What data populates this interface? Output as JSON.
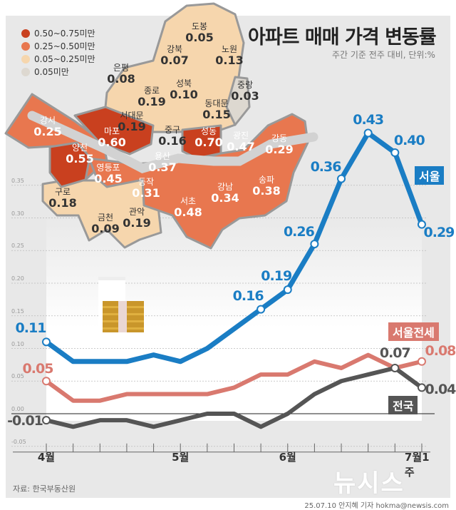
{
  "header": {
    "title": "아파트 매매 가격 변동률",
    "subtitle": "주간 기준 전주 대비, 단위:%"
  },
  "legend": [
    {
      "label": "0.50~0.75미만",
      "color": "#c9401f"
    },
    {
      "label": "0.25~0.50미만",
      "color": "#e8774f"
    },
    {
      "label": "0.05~0.25미만",
      "color": "#f6d6ad"
    },
    {
      "label": "0.05미만",
      "color": "#ddd8d0"
    }
  ],
  "map": {
    "districts": [
      {
        "name": "도봉",
        "value": "0.05",
        "tier": 2
      },
      {
        "name": "강북",
        "value": "0.07",
        "tier": 2
      },
      {
        "name": "노원",
        "value": "0.13",
        "tier": 2
      },
      {
        "name": "은평",
        "value": "0.08",
        "tier": 2
      },
      {
        "name": "성북",
        "value": "0.10",
        "tier": 2
      },
      {
        "name": "종로",
        "value": "0.19",
        "tier": 2
      },
      {
        "name": "중랑",
        "value": "0.03",
        "tier": 3
      },
      {
        "name": "동대문",
        "value": "0.15",
        "tier": 2
      },
      {
        "name": "서대문",
        "value": "0.19",
        "tier": 2
      },
      {
        "name": "강서",
        "value": "0.25",
        "tier": 1
      },
      {
        "name": "마포",
        "value": "0.60",
        "tier": 0
      },
      {
        "name": "중구",
        "value": "0.16",
        "tier": 2
      },
      {
        "name": "성동",
        "value": "0.70",
        "tier": 0
      },
      {
        "name": "광진",
        "value": "0.47",
        "tier": 1
      },
      {
        "name": "강동",
        "value": "0.29",
        "tier": 1
      },
      {
        "name": "양천",
        "value": "0.55",
        "tier": 0
      },
      {
        "name": "용산",
        "value": "0.37",
        "tier": 1
      },
      {
        "name": "영등포",
        "value": "0.45",
        "tier": 1
      },
      {
        "name": "동작",
        "value": "0.31",
        "tier": 1
      },
      {
        "name": "구로",
        "value": "0.18",
        "tier": 2
      },
      {
        "name": "강남",
        "value": "0.34",
        "tier": 1
      },
      {
        "name": "송파",
        "value": "0.38",
        "tier": 1
      },
      {
        "name": "서초",
        "value": "0.48",
        "tier": 1
      },
      {
        "name": "금천",
        "value": "0.09",
        "tier": 2
      },
      {
        "name": "관악",
        "value": "0.19",
        "tier": 2
      }
    ]
  },
  "chart_data": {
    "type": "line",
    "title": "아파트 매매 가격 변동률",
    "ylim": [
      -0.05,
      0.43
    ],
    "yticks": [
      "0.35",
      "0.30",
      "0.25",
      "0.20",
      "0.15",
      "0.10",
      "0.05",
      "0.00",
      "-0.05"
    ],
    "xticks": [
      {
        "index": 0,
        "label": "4월"
      },
      {
        "index": 5,
        "label": "5월"
      },
      {
        "index": 9,
        "label": "6월"
      },
      {
        "index": 14,
        "label": "7월1주"
      }
    ],
    "grid": true,
    "series": [
      {
        "name": "서울",
        "color": "#1a7dc4",
        "values": [
          0.11,
          0.08,
          0.08,
          0.08,
          0.09,
          0.08,
          0.1,
          0.13,
          0.16,
          0.19,
          0.26,
          0.36,
          0.43,
          0.4,
          0.29
        ],
        "labeled": [
          0,
          8,
          9,
          10,
          11,
          12,
          13,
          14
        ]
      },
      {
        "name": "서울전세",
        "color": "#d9796f",
        "values": [
          0.05,
          0.02,
          0.02,
          0.03,
          0.03,
          0.03,
          0.03,
          0.04,
          0.06,
          0.06,
          0.08,
          0.07,
          0.09,
          0.07,
          0.08
        ],
        "labeled": [
          0,
          14
        ]
      },
      {
        "name": "전국",
        "color": "#555555",
        "values": [
          -0.01,
          -0.02,
          -0.01,
          -0.01,
          -0.02,
          -0.01,
          0.0,
          0.0,
          -0.02,
          0.0,
          0.03,
          0.05,
          0.06,
          0.07,
          0.04
        ],
        "labeled": [
          0,
          13,
          14
        ]
      }
    ]
  },
  "footer": {
    "source": "자료: 한국부동산원",
    "credit": "25.07.10 안지혜 기자 hokma@newsis.com",
    "logo": "뉴시스"
  }
}
